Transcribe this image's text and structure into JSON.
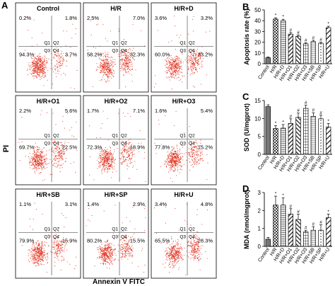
{
  "panel_labels": {
    "A": "A",
    "B": "B",
    "C": "C",
    "D": "D"
  },
  "flow": {
    "xlabel": "Annexin V FITC",
    "ylabel": "PI",
    "quadrant_labels": [
      "Q1",
      "Q2",
      "Q3",
      "Q4"
    ],
    "plots": [
      {
        "title": "Control",
        "q1": "0.2%",
        "q2": "1.8%",
        "q3": "94.3%",
        "q4": "3.7%"
      },
      {
        "title": "H/R",
        "q1": "2.5%",
        "q2": "7.0%",
        "q3": "58.2%",
        "q4": "32.3%"
      },
      {
        "title": "H/R+D",
        "q1": "3.6%",
        "q2": "3.2%",
        "q3": "60.0%",
        "q4": "33.2%"
      },
      {
        "title": "H/R+O1",
        "q1": "2.2%",
        "q2": "5.6%",
        "q3": "69.7%",
        "q4": "22.5%"
      },
      {
        "title": "H/R+O2",
        "q1": "1.7%",
        "q2": "7.1%",
        "q3": "72.3%",
        "q4": "18.9%"
      },
      {
        "title": "H/R+O3",
        "q1": "1.6%",
        "q2": "5.4%",
        "q3": "77.8%",
        "q4": "15.2%"
      },
      {
        "title": "H/R+SB",
        "q1": "1.1%",
        "q2": "3.1%",
        "q3": "79.9%",
        "q4": "15.9%"
      },
      {
        "title": "H/R+SP",
        "q1": "1.4%",
        "q2": "2.9%",
        "q3": "80.2%",
        "q4": "15.5%"
      },
      {
        "title": "H/R+U",
        "q1": "3.4%",
        "q2": "4.8%",
        "q3": "65.5%",
        "q4": "26.3%"
      }
    ]
  },
  "colors": {
    "dots": "#e0301e",
    "axis": "#000000",
    "quad_line": "#555555"
  },
  "chart_data": [
    {
      "type": "bar",
      "panel": "B",
      "ylabel": "Apoptosis rate (%)",
      "ylim": [
        0,
        50
      ],
      "yticks": [
        0,
        10,
        20,
        30,
        40,
        50
      ],
      "categories": [
        "Control",
        "H/R",
        "H/R+D",
        "H/R+O1",
        "H/R+O2",
        "H/R+O3",
        "H/R+SB",
        "H/R+SP",
        "H/R+U"
      ],
      "values": [
        5.5,
        41.5,
        40,
        27.5,
        25.5,
        18.5,
        20.5,
        19,
        33.5
      ],
      "errors": [
        0.8,
        1.2,
        1.3,
        1.5,
        1.3,
        1.0,
        1.2,
        1.0,
        1.3
      ],
      "marks": [
        "",
        "*",
        "*",
        "#",
        "#",
        "#",
        "#",
        "#",
        "*"
      ],
      "patterns": [
        "solid-gray",
        "checker",
        "dense-dots",
        "hatch-right",
        "hatch-left",
        "grid",
        "grid-fine",
        "dots",
        "hatch-right-wide"
      ]
    },
    {
      "type": "bar",
      "panel": "C",
      "ylabel": "SOD (U/mgprot)",
      "ylim": [
        0,
        15
      ],
      "yticks": [
        0,
        5,
        10,
        15
      ],
      "categories": [
        "Control",
        "H/R",
        "H/R+D",
        "H/R+O1",
        "H/R+O2",
        "H/R+O3",
        "H/R+SB",
        "H/R+SP",
        "H/R+U"
      ],
      "values": [
        13.3,
        7.2,
        7.3,
        8.6,
        10.3,
        12.8,
        10.6,
        9.9,
        7.6
      ],
      "errors": [
        0.5,
        0.8,
        1.0,
        1.3,
        1.2,
        0.9,
        1.0,
        1.0,
        1.0
      ],
      "marks": [
        "",
        "*",
        "*",
        "#",
        "#",
        "#",
        "#",
        "#",
        "*"
      ],
      "patterns": [
        "solid-gray",
        "checker",
        "dense-dots",
        "hatch-right",
        "hatch-left",
        "grid",
        "grid-fine",
        "dots",
        "hatch-right-wide"
      ]
    },
    {
      "type": "bar",
      "panel": "D",
      "ylabel": "MDA (nmol/mgprot)",
      "ylim": [
        0,
        3
      ],
      "yticks": [
        0,
        1,
        2,
        3
      ],
      "categories": [
        "Control",
        "H/R",
        "H/R+D",
        "H/R+O1",
        "H/R+O2",
        "H/R+O3",
        "H/R+SB",
        "H/R+SP",
        "H/R+U"
      ],
      "values": [
        0.4,
        2.3,
        2.3,
        1.8,
        1.5,
        0.8,
        0.9,
        0.9,
        1.6
      ],
      "errors": [
        0.1,
        0.5,
        0.4,
        0.3,
        0.3,
        0.1,
        0.2,
        0.3,
        0.2
      ],
      "marks": [
        "",
        "*",
        "*",
        "#",
        "#",
        "#",
        "#",
        "#",
        "*"
      ],
      "patterns": [
        "solid-gray",
        "checker",
        "dense-dots",
        "hatch-right",
        "hatch-left",
        "grid",
        "grid-fine",
        "dots",
        "hatch-right-wide"
      ]
    }
  ]
}
